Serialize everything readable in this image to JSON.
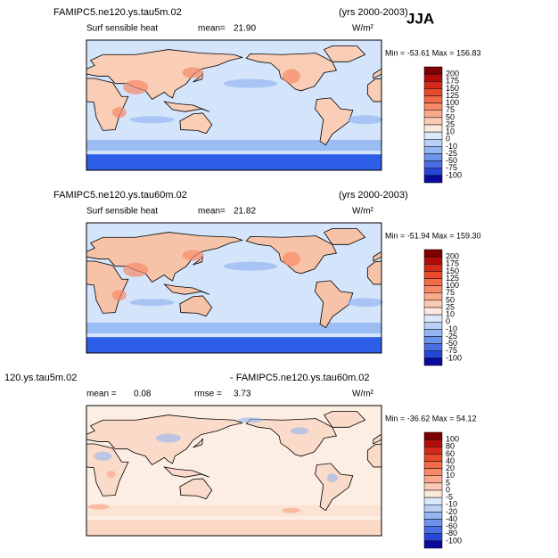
{
  "season": "JJA",
  "panels": [
    {
      "case": "FAMIPC5.ne120.ys.tau5m.02",
      "years": "(yrs 2000-2003)",
      "variable": "Surf sensible heat",
      "mean_label": "mean=",
      "mean": "21.90",
      "units": "W/m²",
      "minmax": "Min = -53.61  Max = 156.83",
      "colorbar": {
        "levels": [
          200,
          175,
          150,
          125,
          100,
          75,
          50,
          25,
          10,
          0,
          -10,
          -25,
          -50,
          -75,
          -100
        ],
        "colors": [
          "#7f0000",
          "#b00c0c",
          "#d42a1c",
          "#e84a2e",
          "#f26a48",
          "#f68a68",
          "#f9aa8c",
          "#fccbb5",
          "#fde9dc",
          "#dbe8fb",
          "#b9d1f7",
          "#94b6f2",
          "#6d94ec",
          "#4a6fe4",
          "#2846d6",
          "#0a0a9c"
        ]
      },
      "ocean": "#d3e4fb",
      "land": "#f9cdb6",
      "band": "#9cbcf4",
      "pole": "#2d5de6"
    },
    {
      "case": "FAMIPC5.ne120.ys.tau60m.02",
      "years": "(yrs 2000-2003)",
      "variable": "Surf sensible heat",
      "mean_label": "mean=",
      "mean": "21.82",
      "units": "W/m²",
      "minmax": "Min = -51.94  Max = 159.30",
      "colorbar": {
        "levels": [
          200,
          175,
          150,
          125,
          100,
          75,
          50,
          25,
          10,
          0,
          -10,
          -25,
          -50,
          -75,
          -100
        ],
        "colors": [
          "#7f0000",
          "#b00c0c",
          "#d42a1c",
          "#e84a2e",
          "#f26a48",
          "#f68a68",
          "#f9aa8c",
          "#fccbb5",
          "#fde9dc",
          "#dbe8fb",
          "#b9d1f7",
          "#94b6f2",
          "#6d94ec",
          "#4a6fe4",
          "#2846d6",
          "#0a0a9c"
        ]
      },
      "ocean": "#d3e4fb",
      "land": "#f7c3a8",
      "band": "#9cbcf4",
      "pole": "#2d5de6"
    },
    {
      "case": "120.ys.tau5m.02",
      "case2": "- FAMIPC5.ne120.ys.tau60m.02",
      "mean_label": "mean =",
      "mean": "0.08",
      "rmse_label": "rmse =",
      "rmse": "3.73",
      "units": "W/m²",
      "minmax": "Min = -36.62  Max =  54.12",
      "colorbar": {
        "levels": [
          100,
          80,
          60,
          40,
          20,
          10,
          5,
          0,
          -5,
          -10,
          -20,
          -40,
          -60,
          -80,
          -100
        ],
        "colors": [
          "#7f0000",
          "#b00c0c",
          "#d42a1c",
          "#e84a2e",
          "#f26a48",
          "#f68a68",
          "#f9aa8c",
          "#fccbb5",
          "#fde9dc",
          "#dbe8fb",
          "#b9d1f7",
          "#94b6f2",
          "#6d94ec",
          "#4a6fe4",
          "#2846d6",
          "#0a0a9c"
        ]
      },
      "ocean": "#fdeee4",
      "land": "#fadac8",
      "band": "#fbe3d4",
      "pole": "#fcd9c6"
    }
  ]
}
